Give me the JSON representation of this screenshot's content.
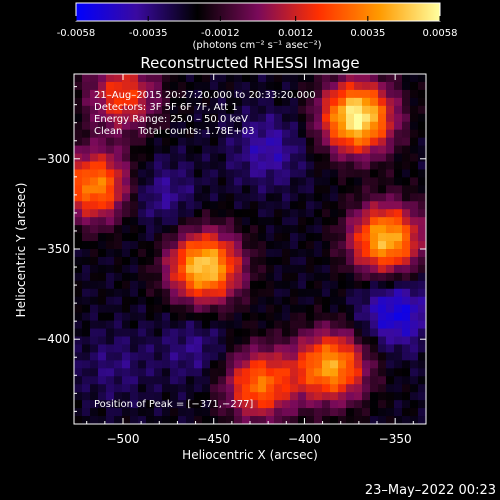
{
  "colorbar": {
    "ticks": [
      "-0.0058",
      "-0.0035",
      "-0.0012",
      "0.0012",
      "0.0035",
      "0.0058"
    ],
    "tick_values": [
      -0.0058,
      -0.0035,
      -0.0012,
      0.0012,
      0.0035,
      0.0058
    ],
    "unit_label": "(photons cm⁻² s⁻¹ asec⁻²)",
    "range": [
      -0.0058,
      0.0058
    ],
    "colors": [
      "#0000ff",
      "#3a0aa0",
      "#000000",
      "#7a0a5a",
      "#ff3000",
      "#ff9a00",
      "#ffffa0"
    ]
  },
  "chart_data": {
    "type": "heatmap",
    "title": "Reconstructed RHESSI Image",
    "xlabel": "Heliocentric X (arcsec)",
    "ylabel": "Heliocentric Y (arcsec)",
    "xlim": [
      -527,
      -333
    ],
    "ylim": [
      -447,
      -253
    ],
    "x_ticks": [
      -500,
      -450,
      -400,
      -350
    ],
    "x_tick_labels": [
      "−500",
      "−450",
      "−400",
      "−350"
    ],
    "y_ticks": [
      -300,
      -350,
      -400
    ],
    "y_tick_labels": [
      "−300",
      "−350",
      "−400"
    ],
    "annotations": [
      "21–Aug–2015 20:27:20.000 to 20:33:20.000",
      "Detectors: 3F 5F 6F 7F, Att 1",
      "Energy Range: 25.0 – 50.0 keV",
      "Clean     Total counts: 1.78E+03"
    ],
    "peak_label": "Position of Peak = [−371,−277]",
    "peak": [
      -371,
      -277
    ],
    "sources": [
      {
        "x": -371,
        "y": -277,
        "value": 0.0058
      },
      {
        "x": -515,
        "y": -315,
        "value": 0.0035
      },
      {
        "x": -455,
        "y": -360,
        "value": 0.005
      },
      {
        "x": -355,
        "y": -345,
        "value": 0.0045
      },
      {
        "x": -385,
        "y": -415,
        "value": 0.004
      },
      {
        "x": -425,
        "y": -425,
        "value": 0.003
      },
      {
        "x": -500,
        "y": -265,
        "value": 0.002
      },
      {
        "x": -420,
        "y": -295,
        "value": -0.0035
      },
      {
        "x": -480,
        "y": -320,
        "value": -0.003
      },
      {
        "x": -350,
        "y": -385,
        "value": -0.0055
      },
      {
        "x": -460,
        "y": -405,
        "value": -0.0025
      },
      {
        "x": -505,
        "y": -415,
        "value": -0.002
      }
    ]
  },
  "footer": {
    "timestamp": "23–May–2022 00:23"
  }
}
